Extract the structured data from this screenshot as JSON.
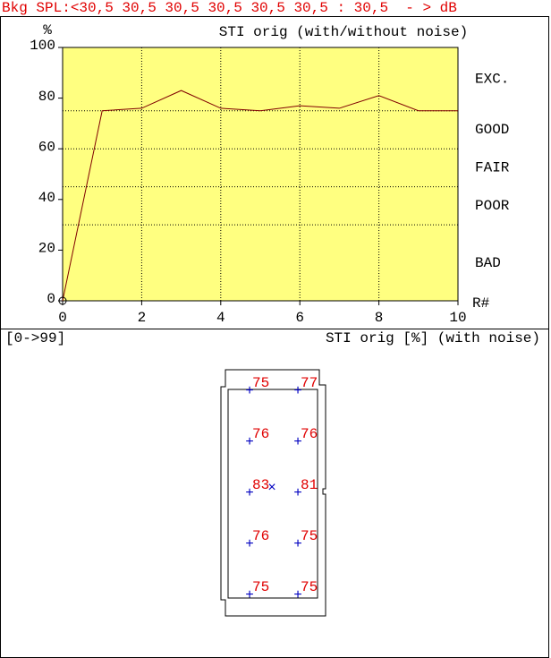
{
  "header": {
    "text": "Bkg SPL:<30,5 30,5 30,5 30,5 30,5 30,5 : 30,5  - > dB"
  },
  "chart_data": {
    "type": "line",
    "title": "STI orig (with/without noise)",
    "y_label": "%",
    "x_label": "R#",
    "x": [
      0,
      1,
      2,
      3,
      4,
      5,
      6,
      7,
      8,
      9,
      10
    ],
    "values": [
      0,
      75,
      76,
      83,
      76,
      75,
      77,
      76,
      81,
      75,
      75
    ],
    "color": "#800000",
    "xlim": [
      0,
      10
    ],
    "xticks": [
      0,
      2,
      4,
      6,
      8,
      10
    ],
    "ylim": [
      0,
      100
    ],
    "yticks": [
      0,
      20,
      40,
      60,
      80,
      100
    ],
    "grid": true,
    "rating_lines": [
      75,
      60,
      45,
      30
    ],
    "ratings": [
      "EXC.",
      "GOOD",
      "FAIR",
      "POOR",
      "BAD"
    ]
  },
  "floor_plan": {
    "range_label": "[0->99]",
    "title": "STI orig [%] (with noise)",
    "values": [
      75,
      77,
      76,
      76,
      83,
      81,
      76,
      75,
      75,
      75
    ]
  }
}
